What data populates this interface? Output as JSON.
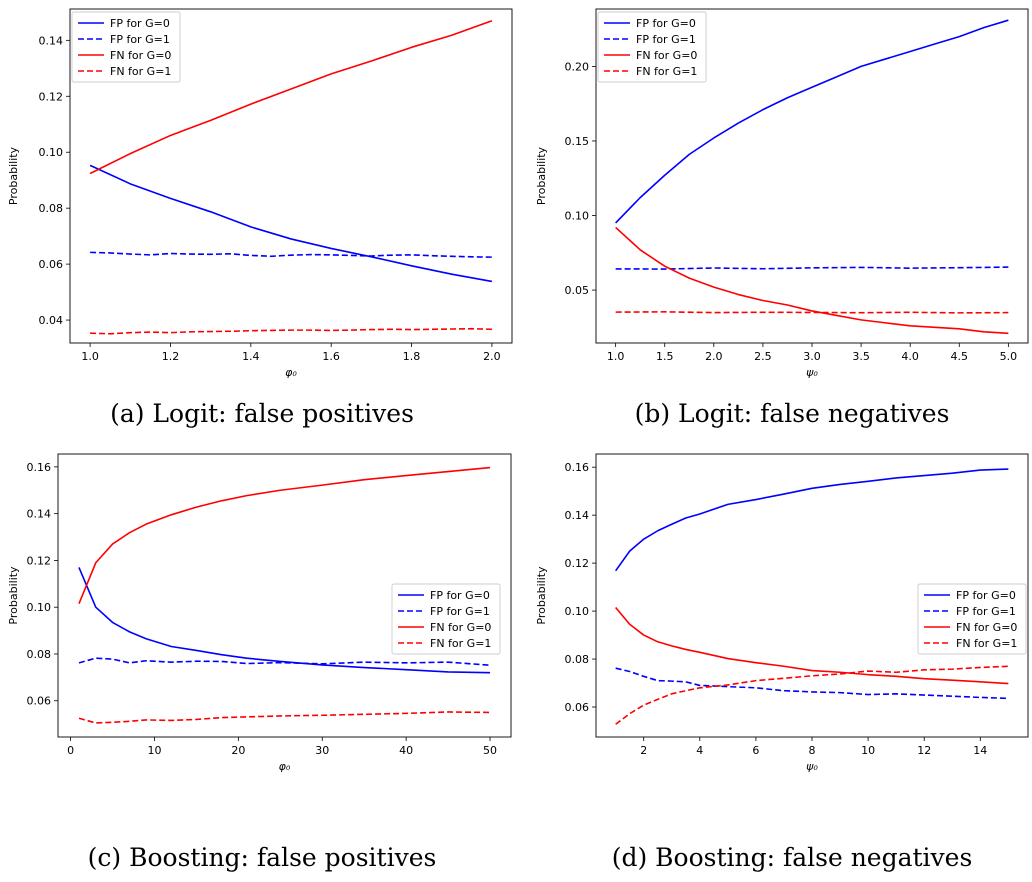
{
  "chart_data": [
    {
      "type": "line",
      "caption": "(a) Logit: false positives",
      "xlabel": "φ₀",
      "ylabel": "Probability",
      "xlim": [
        0.95,
        2.05
      ],
      "ylim": [
        0.0318,
        0.1512
      ],
      "xticks": [
        1.0,
        1.2,
        1.4,
        1.6,
        1.8,
        2.0
      ],
      "xtick_labels": [
        "1.0",
        "1.2",
        "1.4",
        "1.6",
        "1.8",
        "2.0"
      ],
      "yticks": [
        0.04,
        0.06,
        0.08,
        0.1,
        0.12,
        0.14
      ],
      "ytick_labels": [
        "0.04",
        "0.06",
        "0.08",
        "0.10",
        "0.12",
        "0.14"
      ],
      "legend_position": "upper-left",
      "series": [
        {
          "name": "FP for G=0",
          "color": "#0000ff",
          "dash": "solid",
          "x": [
            1.0,
            1.1,
            1.2,
            1.3,
            1.4,
            1.5,
            1.6,
            1.7,
            1.8,
            1.9,
            2.0
          ],
          "y": [
            0.0953,
            0.0887,
            0.0835,
            0.0787,
            0.0733,
            0.069,
            0.0656,
            0.0626,
            0.0594,
            0.0564,
            0.0538
          ]
        },
        {
          "name": "FP for G=1",
          "color": "#0000ff",
          "dash": "dashed",
          "x": [
            1.0,
            1.05,
            1.1,
            1.15,
            1.2,
            1.25,
            1.3,
            1.35,
            1.4,
            1.45,
            1.5,
            1.55,
            1.6,
            1.65,
            1.7,
            1.75,
            1.8,
            1.85,
            1.9,
            1.95,
            2.0
          ],
          "y": [
            0.0642,
            0.064,
            0.0636,
            0.0633,
            0.0638,
            0.0636,
            0.0635,
            0.0637,
            0.0631,
            0.0628,
            0.0632,
            0.0634,
            0.0633,
            0.0631,
            0.0629,
            0.0632,
            0.0633,
            0.063,
            0.0628,
            0.0626,
            0.0625
          ]
        },
        {
          "name": "FN for G=0",
          "color": "#ff0000",
          "dash": "solid",
          "x": [
            1.0,
            1.1,
            1.2,
            1.3,
            1.4,
            1.5,
            1.6,
            1.7,
            1.8,
            1.9,
            2.0
          ],
          "y": [
            0.0924,
            0.0995,
            0.106,
            0.1114,
            0.1172,
            0.1226,
            0.128,
            0.1326,
            0.1375,
            0.1418,
            0.147
          ]
        },
        {
          "name": "FN for G=1",
          "color": "#ff0000",
          "dash": "dashed",
          "x": [
            1.0,
            1.05,
            1.1,
            1.15,
            1.2,
            1.25,
            1.3,
            1.35,
            1.4,
            1.45,
            1.5,
            1.55,
            1.6,
            1.65,
            1.7,
            1.75,
            1.8,
            1.85,
            1.9,
            1.95,
            2.0
          ],
          "y": [
            0.0353,
            0.0351,
            0.0355,
            0.0357,
            0.0355,
            0.0358,
            0.0359,
            0.036,
            0.0362,
            0.0363,
            0.0364,
            0.0364,
            0.0363,
            0.0364,
            0.0366,
            0.0367,
            0.0366,
            0.0367,
            0.0368,
            0.0369,
            0.0367
          ]
        }
      ]
    },
    {
      "type": "line",
      "caption": "(b) Logit: false negatives",
      "xlabel": "ψ₀",
      "ylabel": "Probability",
      "xlim": [
        0.8,
        5.2
      ],
      "ylim": [
        0.0145,
        0.2385
      ],
      "xticks": [
        1.0,
        1.5,
        2.0,
        2.5,
        3.0,
        3.5,
        4.0,
        4.5,
        5.0
      ],
      "xtick_labels": [
        "1.0",
        "1.5",
        "2.0",
        "2.5",
        "3.0",
        "3.5",
        "4.0",
        "4.5",
        "5.0"
      ],
      "yticks": [
        0.05,
        0.1,
        0.15,
        0.2
      ],
      "ytick_labels": [
        "0.05",
        "0.10",
        "0.15",
        "0.20"
      ],
      "legend_position": "upper-left",
      "series": [
        {
          "name": "FP for G=0",
          "color": "#0000ff",
          "dash": "solid",
          "x": [
            1.0,
            1.25,
            1.5,
            1.75,
            2.0,
            2.25,
            2.5,
            2.75,
            3.0,
            3.25,
            3.5,
            3.75,
            4.0,
            4.25,
            4.5,
            4.75,
            5.0
          ],
          "y": [
            0.095,
            0.112,
            0.127,
            0.141,
            0.152,
            0.162,
            0.171,
            0.179,
            0.186,
            0.193,
            0.2,
            0.205,
            0.21,
            0.215,
            0.22,
            0.226,
            0.231
          ]
        },
        {
          "name": "FP for G=1",
          "color": "#0000ff",
          "dash": "dashed",
          "x": [
            1.0,
            1.5,
            2.0,
            2.5,
            3.0,
            3.5,
            4.0,
            4.5,
            5.0
          ],
          "y": [
            0.0642,
            0.0641,
            0.0648,
            0.0643,
            0.0649,
            0.0652,
            0.0647,
            0.065,
            0.0654
          ]
        },
        {
          "name": "FN for G=0",
          "color": "#ff0000",
          "dash": "solid",
          "x": [
            1.0,
            1.25,
            1.5,
            1.75,
            2.0,
            2.25,
            2.5,
            2.75,
            3.0,
            3.25,
            3.5,
            3.75,
            4.0,
            4.25,
            4.5,
            4.75,
            5.0
          ],
          "y": [
            0.092,
            0.077,
            0.066,
            0.058,
            0.052,
            0.047,
            0.043,
            0.04,
            0.036,
            0.033,
            0.03,
            0.028,
            0.026,
            0.025,
            0.024,
            0.022,
            0.021
          ]
        },
        {
          "name": "FN for G=1",
          "color": "#ff0000",
          "dash": "dashed",
          "x": [
            1.0,
            1.5,
            2.0,
            2.5,
            3.0,
            3.5,
            4.0,
            4.5,
            5.0
          ],
          "y": [
            0.0352,
            0.0354,
            0.0349,
            0.0351,
            0.035,
            0.0348,
            0.0351,
            0.0347,
            0.0349
          ]
        }
      ]
    },
    {
      "type": "line",
      "caption": "(c) Boosting: false positives",
      "xlabel": "φ₀",
      "ylabel": "Probability",
      "xlim": [
        -1.5,
        52.5
      ],
      "ylim": [
        0.0445,
        0.1655
      ],
      "xticks": [
        0,
        10,
        20,
        30,
        40,
        50
      ],
      "xtick_labels": [
        "0",
        "10",
        "20",
        "30",
        "40",
        "50"
      ],
      "yticks": [
        0.06,
        0.08,
        0.1,
        0.12,
        0.14,
        0.16
      ],
      "ytick_labels": [
        "0.06",
        "0.08",
        "0.10",
        "0.12",
        "0.14",
        "0.16"
      ],
      "legend_position": "center-right",
      "series": [
        {
          "name": "FP for G=0",
          "color": "#0000ff",
          "dash": "solid",
          "x": [
            1,
            3,
            5,
            7,
            9,
            12,
            15,
            18,
            21,
            25,
            30,
            35,
            40,
            45,
            50
          ],
          "y": [
            0.117,
            0.1,
            0.0935,
            0.0895,
            0.0865,
            0.0832,
            0.0815,
            0.0797,
            0.0782,
            0.0768,
            0.0753,
            0.0742,
            0.0733,
            0.0723,
            0.072
          ]
        },
        {
          "name": "FP for G=1",
          "color": "#0000ff",
          "dash": "dashed",
          "x": [
            1,
            3,
            5,
            7,
            9,
            12,
            15,
            18,
            21,
            25,
            30,
            35,
            40,
            45,
            50
          ],
          "y": [
            0.0762,
            0.0782,
            0.0778,
            0.0762,
            0.0771,
            0.0765,
            0.0769,
            0.0768,
            0.0759,
            0.0763,
            0.0758,
            0.0765,
            0.0762,
            0.0765,
            0.0752
          ]
        },
        {
          "name": "FN for G=0",
          "color": "#ff0000",
          "dash": "solid",
          "x": [
            1,
            3,
            5,
            7,
            9,
            12,
            15,
            18,
            21,
            25,
            30,
            35,
            40,
            45,
            50
          ],
          "y": [
            0.1015,
            0.119,
            0.127,
            0.1318,
            0.1355,
            0.1395,
            0.1428,
            0.1455,
            0.1477,
            0.15,
            0.1522,
            0.1545,
            0.1563,
            0.158,
            0.1597
          ]
        },
        {
          "name": "FN for G=1",
          "color": "#ff0000",
          "dash": "dashed",
          "x": [
            1,
            3,
            5,
            7,
            9,
            12,
            15,
            18,
            21,
            25,
            30,
            35,
            40,
            45,
            50
          ],
          "y": [
            0.0525,
            0.0505,
            0.0508,
            0.0512,
            0.0518,
            0.0516,
            0.052,
            0.0528,
            0.0531,
            0.0535,
            0.0538,
            0.0542,
            0.0546,
            0.0552,
            0.055
          ]
        }
      ]
    },
    {
      "type": "line",
      "caption": "(d) Boosting: false negatives",
      "xlabel": "ψ₀",
      "ylabel": "Probability",
      "xlim": [
        0.3,
        15.7
      ],
      "ylim": [
        0.0475,
        0.1655
      ],
      "xticks": [
        2,
        4,
        6,
        8,
        10,
        12,
        14
      ],
      "xtick_labels": [
        "2",
        "4",
        "6",
        "8",
        "10",
        "12",
        "14"
      ],
      "yticks": [
        0.06,
        0.08,
        0.1,
        0.12,
        0.14,
        0.16
      ],
      "ytick_labels": [
        "0.06",
        "0.08",
        "0.10",
        "0.12",
        "0.14",
        "0.16"
      ],
      "legend_position": "center-right",
      "series": [
        {
          "name": "FP for G=0",
          "color": "#0000ff",
          "dash": "solid",
          "x": [
            1,
            1.5,
            2,
            2.5,
            3,
            3.5,
            4,
            5,
            6,
            7,
            8,
            9,
            10,
            11,
            12,
            13,
            14,
            15
          ],
          "y": [
            0.1168,
            0.125,
            0.13,
            0.1335,
            0.1362,
            0.1388,
            0.1405,
            0.1445,
            0.1465,
            0.1488,
            0.1512,
            0.1528,
            0.1541,
            0.1555,
            0.1565,
            0.1575,
            0.1588,
            0.1592
          ]
        },
        {
          "name": "FP for G=1",
          "color": "#0000ff",
          "dash": "dashed",
          "x": [
            1,
            1.5,
            2,
            2.5,
            3,
            3.5,
            4,
            5,
            6,
            7,
            8,
            9,
            10,
            11,
            12,
            13,
            14,
            15
          ],
          "y": [
            0.0762,
            0.0748,
            0.0728,
            0.071,
            0.0708,
            0.0705,
            0.069,
            0.0685,
            0.068,
            0.0668,
            0.0663,
            0.066,
            0.0652,
            0.0655,
            0.065,
            0.0645,
            0.064,
            0.0636
          ]
        },
        {
          "name": "FN for G=0",
          "color": "#ff0000",
          "dash": "solid",
          "x": [
            1,
            1.5,
            2,
            2.5,
            3,
            3.5,
            4,
            5,
            6,
            7,
            8,
            9,
            10,
            11,
            12,
            13,
            14,
            15
          ],
          "y": [
            0.1015,
            0.0945,
            0.09,
            0.0872,
            0.0855,
            0.084,
            0.0828,
            0.0802,
            0.0785,
            0.077,
            0.0752,
            0.0745,
            0.0735,
            0.0728,
            0.0718,
            0.0712,
            0.0705,
            0.0698
          ]
        },
        {
          "name": "FN for G=1",
          "color": "#ff0000",
          "dash": "dashed",
          "x": [
            1,
            1.5,
            2,
            2.5,
            3,
            3.5,
            4,
            5,
            6,
            7,
            8,
            9,
            10,
            11,
            12,
            13,
            14,
            15
          ],
          "y": [
            0.0528,
            0.0572,
            0.0608,
            0.0632,
            0.0655,
            0.0668,
            0.068,
            0.0692,
            0.071,
            0.072,
            0.073,
            0.0738,
            0.075,
            0.0745,
            0.0755,
            0.0758,
            0.0765,
            0.077
          ]
        }
      ]
    }
  ]
}
